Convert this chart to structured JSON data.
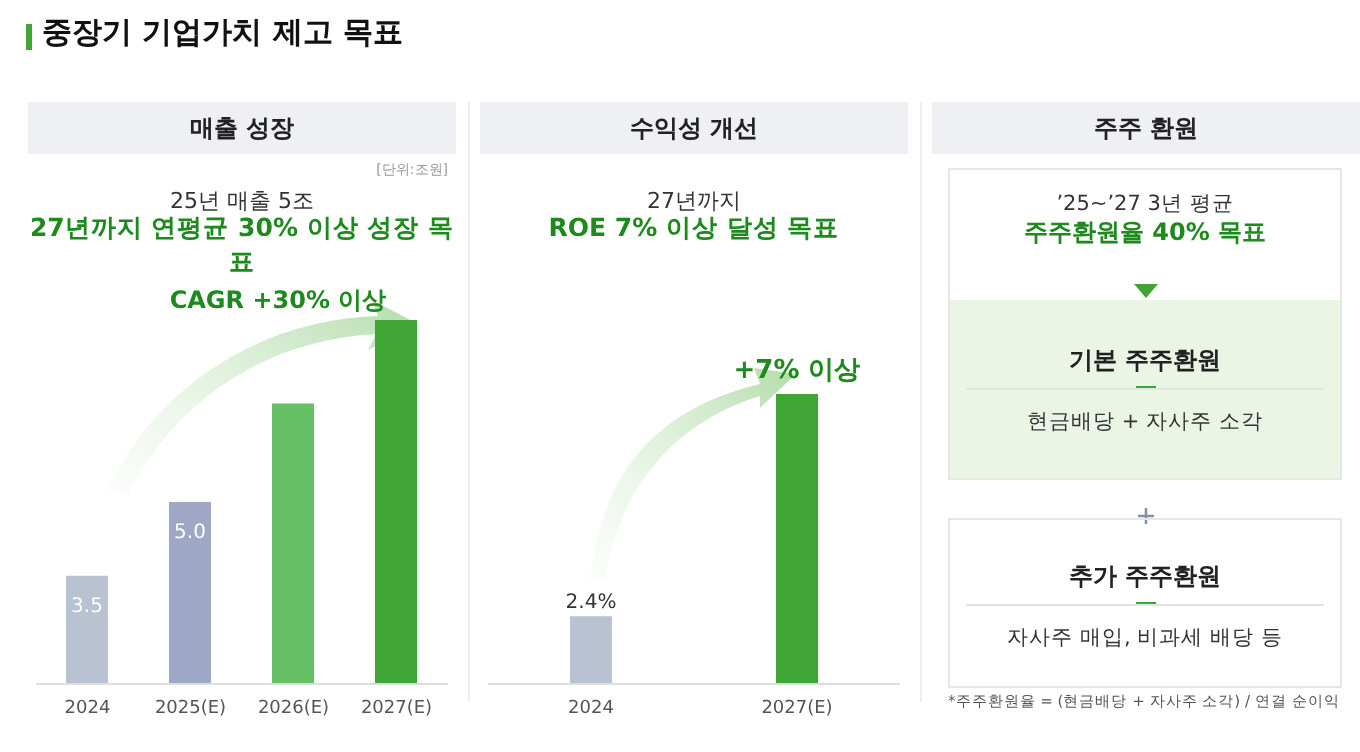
{
  "chart_data": [
    {
      "type": "bar",
      "title": "매출 성장",
      "categories": [
        "2024",
        "2025(E)",
        "2026(E)",
        "2027(E)"
      ],
      "values": [
        3.5,
        5.0,
        7.0,
        8.7
      ],
      "colors": [
        "#b8c2d0",
        "#9ea8c6",
        "#66c166",
        "#3fa535"
      ],
      "ylim": [
        1.3,
        8.7
      ],
      "value_labels": [
        "3.5",
        "5.0",
        null,
        null
      ],
      "annotations": [
        "중장기 기업가치 제고 목표",
        "[단위:조원]",
        "25년 매출 5조",
        "27년까지 연평균 30% 이상 성장 목표",
        "CAGR +30% 이상"
      ]
    },
    {
      "type": "bar",
      "title": "수익성 개선",
      "categories": [
        "2024",
        "2027(E)"
      ],
      "values": [
        2.4,
        7
      ],
      "colors": [
        "#b8c2d0",
        "#3fa535"
      ],
      "ylim": [
        1,
        7
      ],
      "value_labels": [
        "2.4%",
        "+7% 이상"
      ],
      "annotations": [
        "27년까지",
        "ROE 7% 이상 달성 목표"
      ]
    },
    {
      "type": "other",
      "title": "주주 환원",
      "annotations": [
        "’25~’27 3년 평균",
        "주주환원율 40% 목표",
        "기본 주주환원",
        "현금배당 + 자사주 소각",
        "추가 주주환원",
        "자사주 매입, 비과세 배당 등",
        "*주주환원율 = (현금배당 + 자사주 소각) / 연결 순이익"
      ]
    }
  ]
}
